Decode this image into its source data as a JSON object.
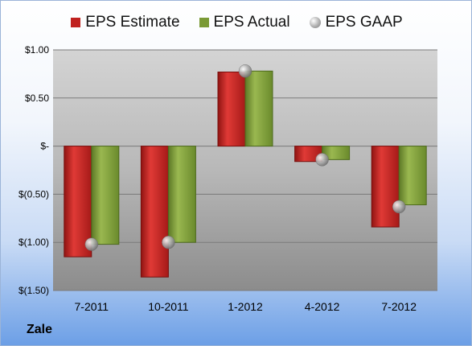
{
  "chart_data": {
    "type": "bar",
    "title": "",
    "categories": [
      "7-2011",
      "10-2011",
      "1-2012",
      "4-2012",
      "7-2012"
    ],
    "series": [
      {
        "name": "EPS Estimate",
        "kind": "bar",
        "color": "#c0211f",
        "values": [
          -1.15,
          -1.36,
          0.77,
          -0.16,
          -0.84
        ]
      },
      {
        "name": "EPS Actual",
        "kind": "bar",
        "color": "#7a9a35",
        "values": [
          -1.02,
          -1.0,
          0.78,
          -0.14,
          -0.61
        ]
      },
      {
        "name": "EPS GAAP",
        "kind": "marker",
        "color": "#a6a6a6",
        "values": [
          -1.02,
          -1.0,
          0.78,
          -0.14,
          -0.63
        ]
      }
    ],
    "yticks": [
      {
        "value": 1.0,
        "label": "$1.00"
      },
      {
        "value": 0.5,
        "label": "$0.50"
      },
      {
        "value": 0.0,
        "label": "$-"
      },
      {
        "value": -0.5,
        "label": "$(0.50)"
      },
      {
        "value": -1.0,
        "label": "$(1.00)"
      },
      {
        "value": -1.5,
        "label": "$(1.50)"
      }
    ],
    "ylim": [
      -1.5,
      1.0
    ],
    "grid": true,
    "legend_position": "top"
  },
  "legend": {
    "estimate": "EPS Estimate",
    "actual": "EPS Actual",
    "gaap": "EPS GAAP"
  },
  "colors": {
    "estimate": "#c0211f",
    "actual": "#7a9a35",
    "gaap": "#a6a6a6"
  },
  "company": "Zale"
}
